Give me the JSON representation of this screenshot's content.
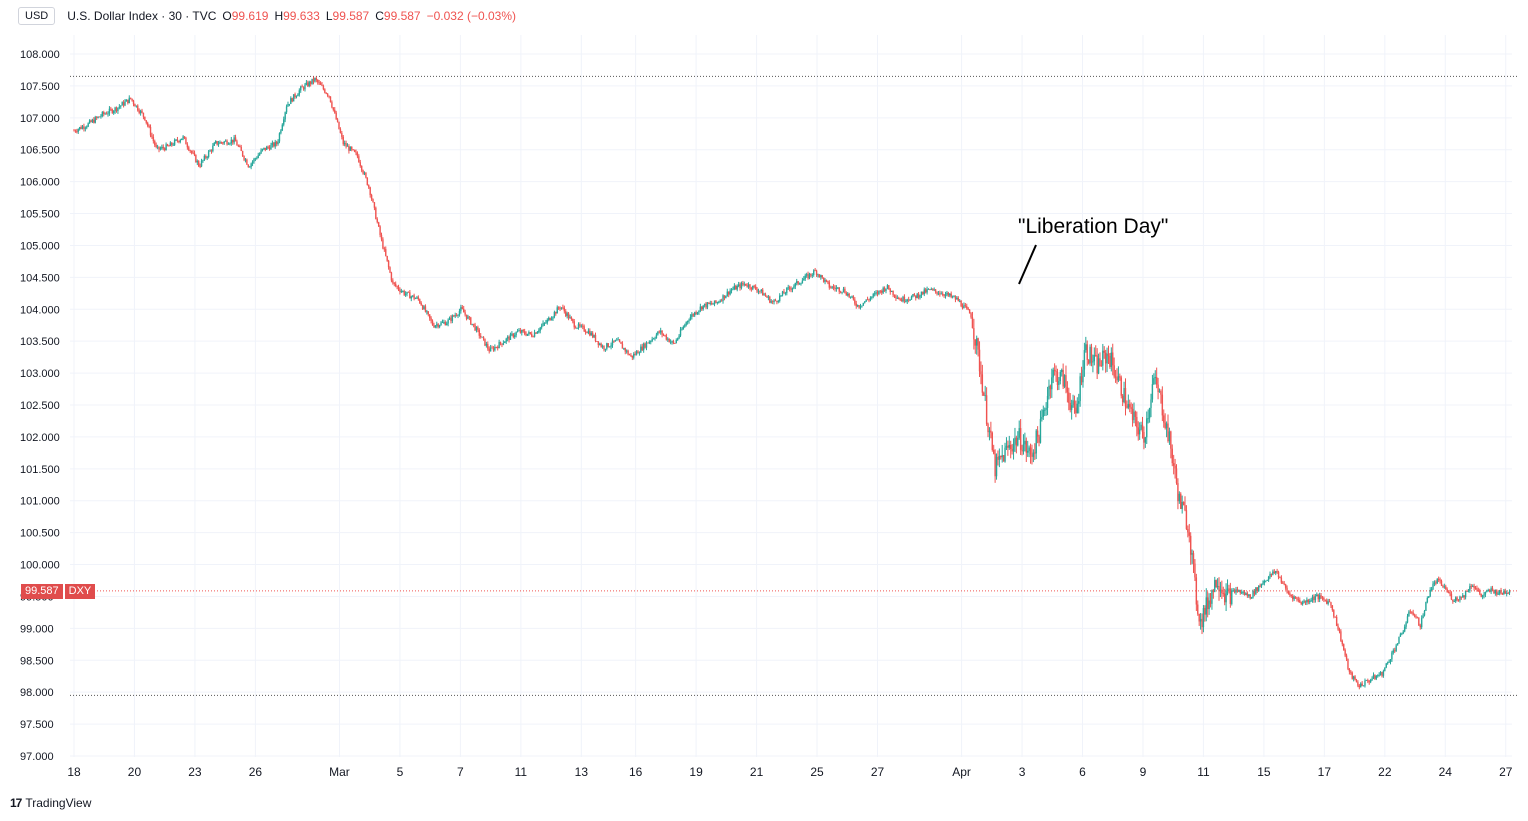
{
  "header": {
    "currency": "USD",
    "instrument": "U.S. Dollar Index · 30 · TVC",
    "open_label": "O",
    "open": "99.619",
    "high_label": "H",
    "high": "99.633",
    "low_label": "L",
    "low": "99.587",
    "close_label": "C",
    "close": "99.587",
    "change": "−0.032 (−0.03%)"
  },
  "price_tag": {
    "value": "99.587",
    "ticker": "DXY"
  },
  "annotation": {
    "text": "\"Liberation Day\""
  },
  "branding": {
    "logo": "17",
    "name": "TradingView"
  },
  "colors": {
    "up": "#26a69a",
    "down": "#ef5350",
    "grid": "#f0f3fa",
    "text": "#131722"
  },
  "chart_data": {
    "type": "line",
    "ylim": [
      97.0,
      108.1
    ],
    "yticks": [
      108.0,
      107.5,
      107.0,
      106.5,
      106.0,
      105.5,
      105.0,
      104.5,
      104.0,
      103.5,
      103.0,
      102.5,
      102.0,
      101.5,
      101.0,
      100.5,
      100.0,
      99.5,
      99.0,
      98.5,
      98.0,
      97.5,
      97.0
    ],
    "ytick_labels": [
      "108.000",
      "107.500",
      "107.000",
      "106.500",
      "106.000",
      "105.500",
      "105.000",
      "104.500",
      "104.000",
      "103.500",
      "103.000",
      "102.500",
      "102.000",
      "101.500",
      "101.000",
      "100.500",
      "100.000",
      "99.500",
      "99.000",
      "98.500",
      "98.000",
      "97.500",
      "97.000"
    ],
    "xtick_labels": [
      "18",
      "20",
      "23",
      "26",
      "Mar",
      "5",
      "7",
      "11",
      "13",
      "16",
      "19",
      "21",
      "25",
      "27",
      "Apr",
      "3",
      "6",
      "9",
      "11",
      "15",
      "17",
      "22",
      "24",
      "27"
    ],
    "xtick_bars": [
      0,
      128,
      256,
      384,
      562,
      690,
      818,
      946,
      1074,
      1189,
      1317,
      1445,
      1573,
      1701,
      1879,
      2007,
      2135,
      2263,
      2391,
      2519,
      2647,
      2775,
      2903,
      3031
    ],
    "hlines": [
      107.65,
      99.587,
      97.95
    ],
    "series": [
      {
        "values": [
          [
            0,
            106.8
          ],
          [
            30,
            106.9
          ],
          [
            60,
            107.05
          ],
          [
            90,
            107.15
          ],
          [
            120,
            107.3
          ],
          [
            150,
            107.0
          ],
          [
            175,
            106.5
          ],
          [
            200,
            106.55
          ],
          [
            230,
            106.7
          ],
          [
            265,
            106.25
          ],
          [
            300,
            106.6
          ],
          [
            340,
            106.65
          ],
          [
            370,
            106.25
          ],
          [
            400,
            106.5
          ],
          [
            430,
            106.6
          ],
          [
            450,
            107.2
          ],
          [
            480,
            107.45
          ],
          [
            510,
            107.6
          ],
          [
            540,
            107.35
          ],
          [
            570,
            106.6
          ],
          [
            600,
            106.4
          ],
          [
            625,
            105.9
          ],
          [
            650,
            105.1
          ],
          [
            675,
            104.4
          ],
          [
            700,
            104.25
          ],
          [
            730,
            104.15
          ],
          [
            760,
            103.75
          ],
          [
            790,
            103.8
          ],
          [
            820,
            104.0
          ],
          [
            850,
            103.7
          ],
          [
            880,
            103.35
          ],
          [
            910,
            103.5
          ],
          [
            940,
            103.65
          ],
          [
            970,
            103.6
          ],
          [
            1000,
            103.8
          ],
          [
            1030,
            104.05
          ],
          [
            1060,
            103.75
          ],
          [
            1090,
            103.65
          ],
          [
            1120,
            103.4
          ],
          [
            1150,
            103.5
          ],
          [
            1180,
            103.25
          ],
          [
            1210,
            103.45
          ],
          [
            1240,
            103.65
          ],
          [
            1270,
            103.45
          ],
          [
            1300,
            103.85
          ],
          [
            1330,
            104.05
          ],
          [
            1360,
            104.1
          ],
          [
            1390,
            104.3
          ],
          [
            1420,
            104.4
          ],
          [
            1450,
            104.3
          ],
          [
            1480,
            104.1
          ],
          [
            1510,
            104.3
          ],
          [
            1540,
            104.45
          ],
          [
            1570,
            104.6
          ],
          [
            1600,
            104.35
          ],
          [
            1630,
            104.3
          ],
          [
            1660,
            104.05
          ],
          [
            1690,
            104.2
          ],
          [
            1720,
            104.35
          ],
          [
            1750,
            104.15
          ],
          [
            1780,
            104.2
          ],
          [
            1810,
            104.3
          ],
          [
            1840,
            104.25
          ],
          [
            1870,
            104.15
          ],
          [
            1900,
            103.9
          ],
          [
            1920,
            103.0
          ],
          [
            1935,
            102.2
          ],
          [
            1950,
            101.5
          ],
          [
            1975,
            101.8
          ],
          [
            2000,
            102.0
          ],
          [
            2025,
            101.7
          ],
          [
            2045,
            102.1
          ],
          [
            2070,
            103.0
          ],
          [
            2095,
            102.9
          ],
          [
            2120,
            102.3
          ],
          [
            2140,
            103.4
          ],
          [
            2165,
            103.1
          ],
          [
            2190,
            103.3
          ],
          [
            2215,
            102.8
          ],
          [
            2240,
            102.3
          ],
          [
            2265,
            102.0
          ],
          [
            2285,
            102.9
          ],
          [
            2300,
            102.6
          ],
          [
            2320,
            101.9
          ],
          [
            2340,
            101.0
          ],
          [
            2360,
            100.6
          ],
          [
            2375,
            99.5
          ],
          [
            2385,
            99.1
          ],
          [
            2400,
            99.4
          ],
          [
            2420,
            99.8
          ],
          [
            2440,
            99.5
          ],
          [
            2460,
            99.6
          ],
          [
            2490,
            99.5
          ],
          [
            2520,
            99.75
          ],
          [
            2545,
            99.9
          ],
          [
            2570,
            99.55
          ],
          [
            2600,
            99.4
          ],
          [
            2630,
            99.5
          ],
          [
            2660,
            99.4
          ],
          [
            2680,
            98.9
          ],
          [
            2700,
            98.3
          ],
          [
            2720,
            98.1
          ],
          [
            2745,
            98.2
          ],
          [
            2770,
            98.3
          ],
          [
            2790,
            98.6
          ],
          [
            2810,
            98.9
          ],
          [
            2830,
            99.3
          ],
          [
            2850,
            99.05
          ],
          [
            2870,
            99.6
          ],
          [
            2885,
            99.75
          ],
          [
            2900,
            99.65
          ],
          [
            2920,
            99.45
          ],
          [
            2940,
            99.5
          ],
          [
            2960,
            99.7
          ],
          [
            2980,
            99.5
          ],
          [
            3000,
            99.6
          ],
          [
            3020,
            99.55
          ],
          [
            3040,
            99.6
          ]
        ]
      }
    ]
  }
}
